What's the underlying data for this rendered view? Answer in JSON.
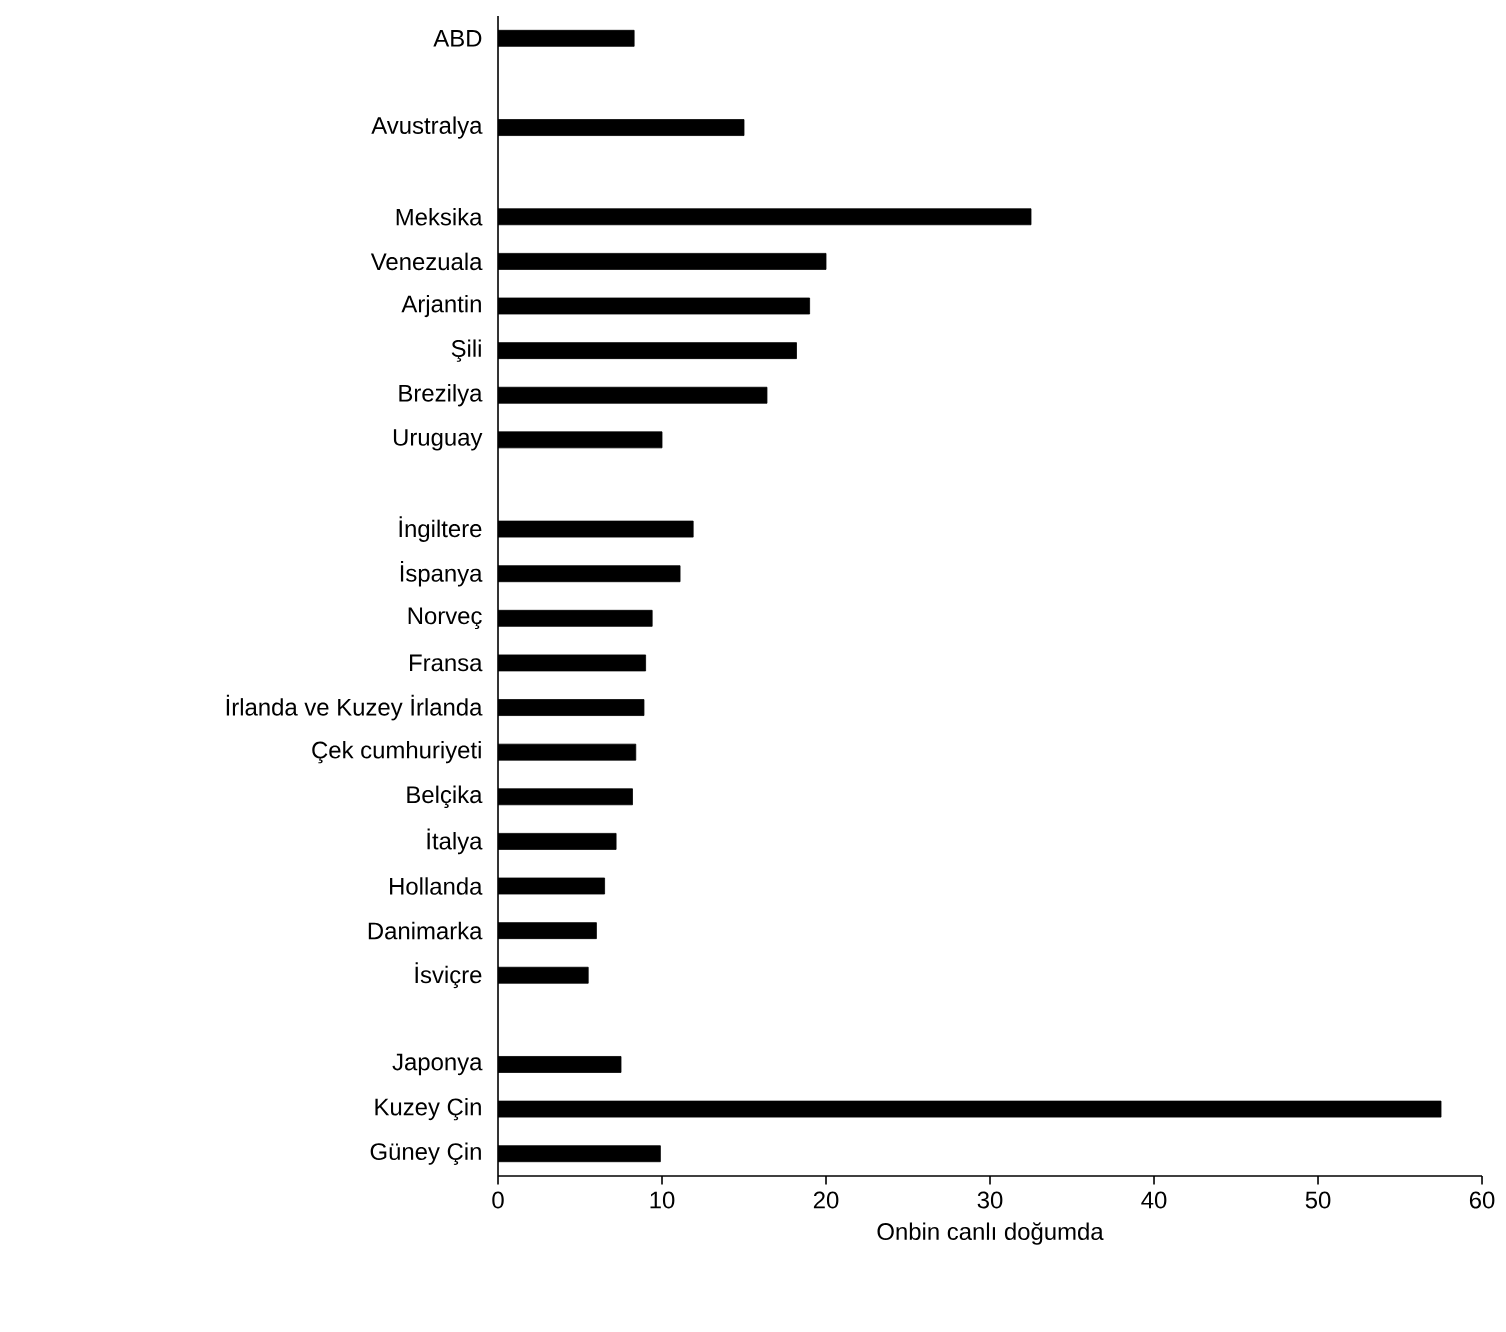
{
  "chart_data": {
    "type": "bar",
    "orientation": "horizontal",
    "xlabel": "Onbin canlı doğumda",
    "categories": [
      "ABD",
      null,
      "Avustralya",
      null,
      "Meksika",
      "Venezuala",
      "Arjantin",
      "Şili",
      "Brezilya",
      "Uruguay",
      null,
      "İngiltere",
      "İspanya",
      "Norveç",
      "Fransa",
      "İrlanda ve Kuzey İrlanda",
      "Çek cumhuriyeti",
      "Belçika",
      "İtalya",
      "Hollanda",
      "Danimarka",
      "İsviçre",
      null,
      "Japonya",
      "Kuzey Çin",
      "Güney Çin"
    ],
    "values": [
      8.3,
      null,
      15,
      null,
      32.5,
      20,
      19,
      18.2,
      16.4,
      10,
      null,
      11.9,
      11.1,
      9.4,
      9,
      8.9,
      8.4,
      8.2,
      7.2,
      6.5,
      6,
      5.5,
      null,
      7.5,
      57.5,
      9.9
    ],
    "color": "#000000",
    "xlim": [
      0,
      60
    ],
    "xticks": [
      0,
      10,
      20,
      30,
      40,
      50,
      60
    ]
  }
}
